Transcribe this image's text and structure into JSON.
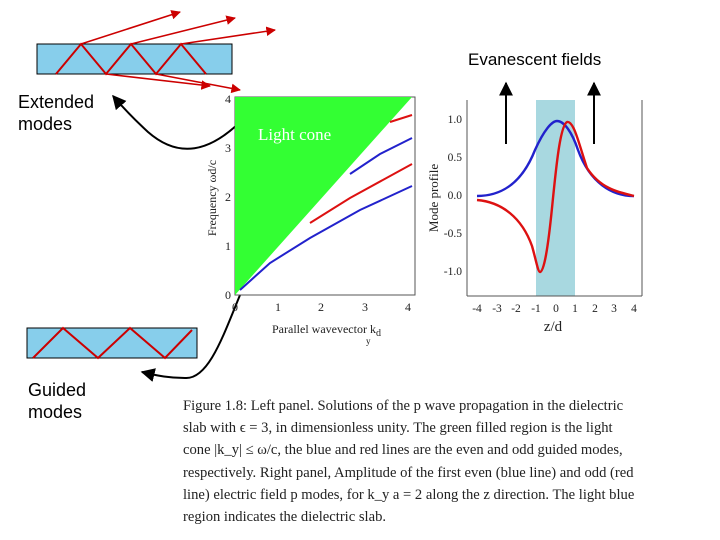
{
  "labels": {
    "extended_line1": "Extended",
    "extended_line2": "modes",
    "guided_line1": "Guided",
    "guided_line2": "modes",
    "evanescent": "Evanescent fields"
  },
  "left_plot": {
    "light_cone": "Light cone",
    "ylabel": "Frequency ωd/c",
    "xlabel": "Parallel wavevector k",
    "xlabel_sub_d": "d",
    "xlabel_sub_y": "y",
    "xticks": [
      "0",
      "1",
      "2",
      "3",
      "4"
    ],
    "yticks": [
      "0",
      "1",
      "2",
      "3",
      "4"
    ]
  },
  "right_plot": {
    "ylabel": "Mode profile",
    "xlabel": "z/d",
    "xticks": [
      "-4",
      "-3",
      "-2",
      "-1",
      "0",
      "1",
      "2",
      "3",
      "4"
    ],
    "yticks": [
      "1.0",
      "0.5",
      "0.0",
      "-0.5",
      "-1.0"
    ]
  },
  "caption": {
    "lines": [
      "Figure 1.8: Left panel. Solutions of the p wave propagation in the dielectric",
      "slab with ϵ = 3, in dimensionless unity. The green filled region is the light",
      "cone |k_y| ≤ ω/c, the blue and red lines are the even and odd guided modes,",
      "respectively. Right panel, Amplitude of the first even (blue line) and odd (red",
      "line) electric field p modes, for k_y a = 2 along the z direction. The light blue",
      "region indicates the dielectric slab."
    ]
  },
  "colors": {
    "slab": "#87ceeb",
    "ray": "#cc0000",
    "green": "#33ff33",
    "blue_mode": "#2222cc",
    "red_mode": "#dd1111",
    "dielectric": "#a8d8e0"
  }
}
